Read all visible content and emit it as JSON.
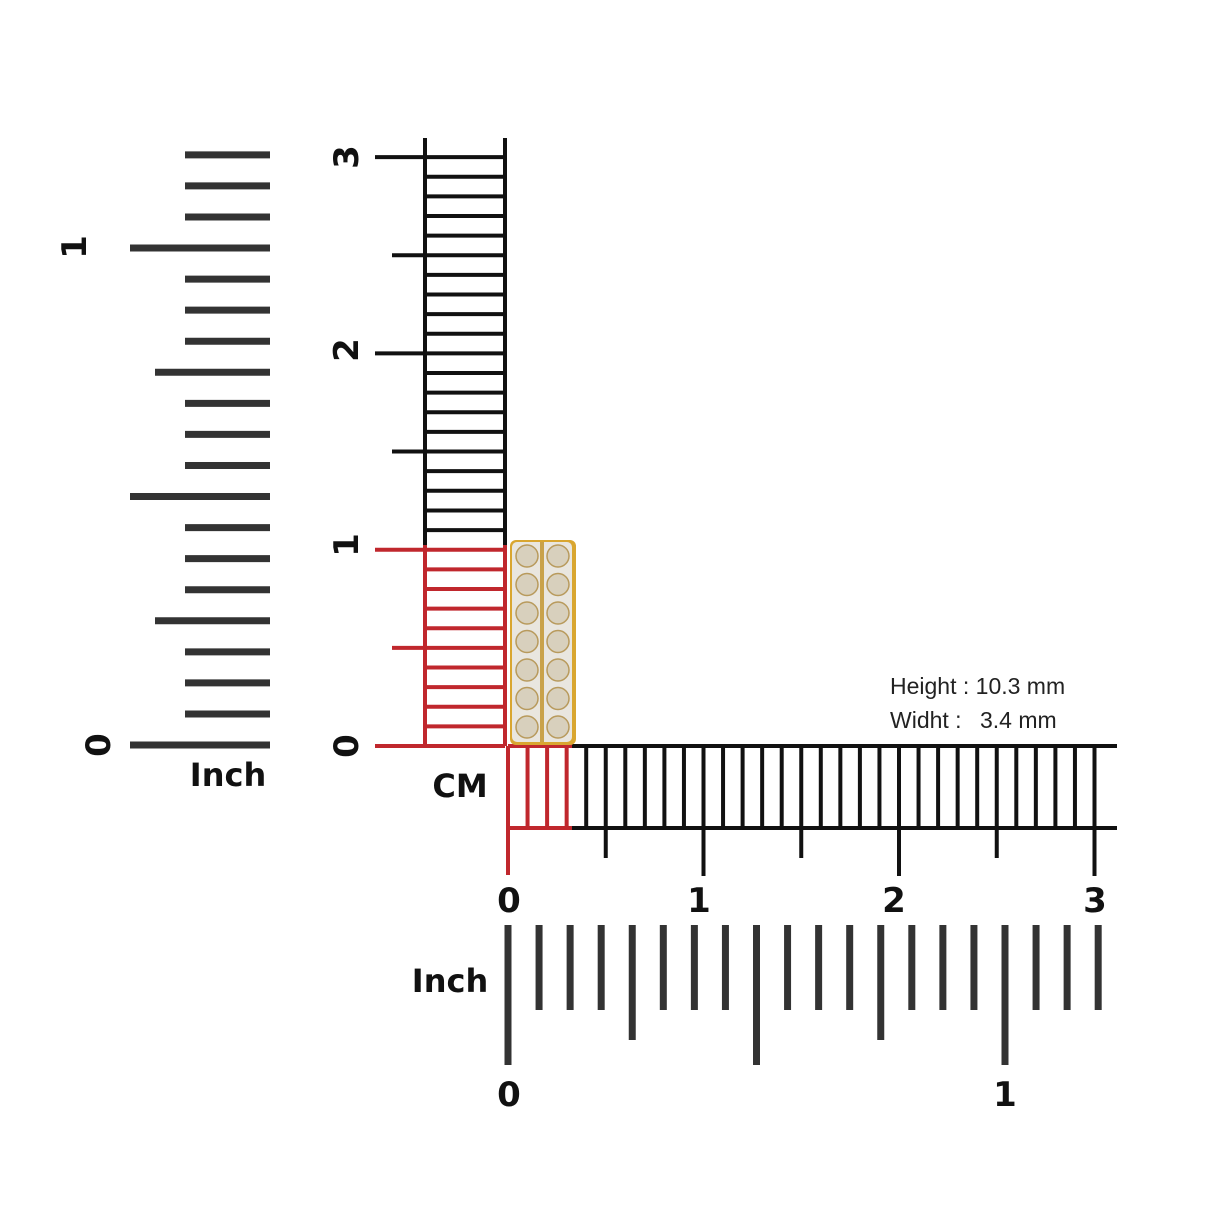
{
  "colors": {
    "ruler_black": "#111111",
    "ruler_red": "#c0272d",
    "inch_bars": "#333333",
    "gold": "#d9a630"
  },
  "cm_vertical": {
    "unit_label": "CM",
    "labels": [
      "0",
      "1",
      "2",
      "3"
    ]
  },
  "cm_horizontal": {
    "labels": [
      "0",
      "1",
      "2",
      "3"
    ]
  },
  "inch_vertical": {
    "unit_label": "Inch",
    "labels": [
      "0",
      "1"
    ]
  },
  "inch_horizontal": {
    "unit_label": "Inch",
    "labels": [
      "0",
      "1"
    ]
  },
  "product": {
    "name_icon": "channel-set-diamond-ring-image"
  },
  "dimensions": {
    "height_label": "Height :",
    "height_value": "10.3 mm",
    "width_label": "Widht :",
    "width_value": "3.4 mm"
  }
}
